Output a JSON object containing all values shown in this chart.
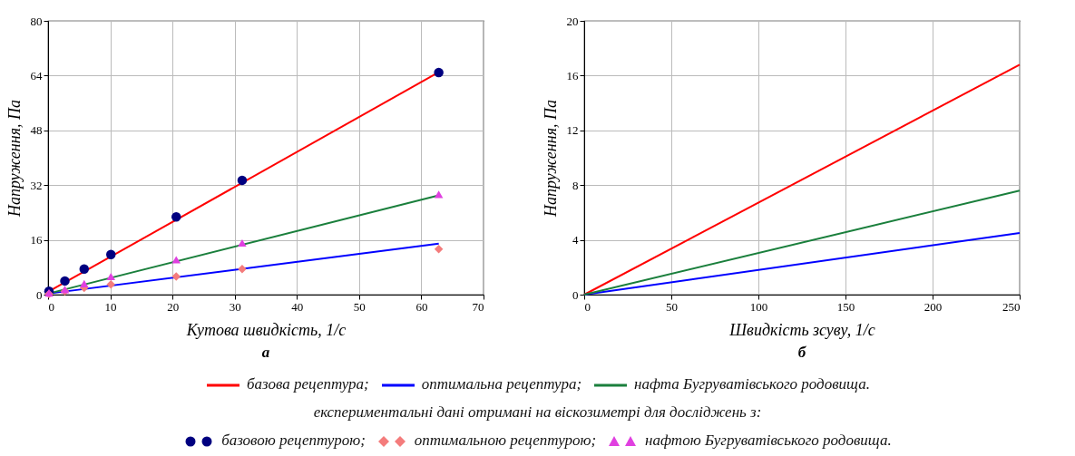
{
  "chart_data": [
    {
      "type": "line",
      "title": "а",
      "xlabel": "Кутова швидкість, 1/с",
      "ylabel": "Напруження, Па",
      "xlim": [
        0,
        70
      ],
      "xticks": [
        0,
        10,
        20,
        30,
        40,
        50,
        60,
        70
      ],
      "ylim": [
        0,
        80
      ],
      "yticks": [
        0,
        16,
        32,
        48,
        64,
        80
      ],
      "grid": true,
      "legend": "bottom",
      "marker": "none",
      "line_style": "solid",
      "annotations": [
        "експериментальні дані отримані на віскозиметрі для досліджень з:"
      ],
      "series": [
        {
          "name": "базова рецептура;",
          "color": "#ff0000",
          "type": "line",
          "x": [
            0,
            62.8
          ],
          "values": [
            0.8,
            65
          ]
        },
        {
          "name": "оптимальна рецептура;",
          "color": "#0000ff",
          "type": "line",
          "x": [
            0,
            62.8
          ],
          "values": [
            0.3,
            14.9
          ]
        },
        {
          "name": "нафта Бугруватівського родовища.",
          "color": "#1a7f3c",
          "type": "line",
          "x": [
            0,
            62.8
          ],
          "values": [
            0.3,
            29.0
          ]
        },
        {
          "name": "базовою рецептурою;",
          "color": "#000080",
          "type": "scatter",
          "marker": "circle",
          "x": [
            0.15,
            2.7,
            5.8,
            10.1,
            20.6,
            31.2,
            62.8
          ],
          "values": [
            1.0,
            4.0,
            7.5,
            11.7,
            22.7,
            33.4,
            64.9
          ]
        },
        {
          "name": "оптимальною рецептурою;",
          "color": "#f47c7c",
          "type": "scatter",
          "marker": "diamond",
          "x": [
            0.15,
            2.7,
            5.8,
            10.1,
            20.6,
            31.2,
            62.8
          ],
          "values": [
            0.2,
            1.0,
            2.0,
            3.0,
            5.3,
            7.5,
            13.3
          ]
        },
        {
          "name": "нафтою Бугруватівського родовища.",
          "color": "#e040e0",
          "type": "scatter",
          "marker": "triangle",
          "x": [
            0.15,
            2.7,
            5.8,
            10.1,
            20.6,
            31.2,
            62.8
          ],
          "values": [
            0.5,
            1.5,
            3.2,
            5.3,
            10.2,
            15.1,
            29.3
          ]
        }
      ]
    },
    {
      "type": "line",
      "title": "б",
      "xlabel": "Швидкість зсуву, 1/с",
      "ylabel": "Напруження, Па",
      "xlim": [
        0,
        250
      ],
      "xticks": [
        0,
        50,
        100,
        150,
        200,
        250
      ],
      "ylim": [
        0,
        20
      ],
      "yticks": [
        0,
        4,
        8,
        12,
        16,
        20
      ],
      "grid": true,
      "marker": "none",
      "line_style": "solid",
      "series": [
        {
          "color": "#ff0000",
          "type": "line",
          "x": [
            0,
            250
          ],
          "values": [
            0,
            16.8
          ]
        },
        {
          "color": "#0000ff",
          "type": "line",
          "x": [
            0,
            250
          ],
          "values": [
            0,
            4.5
          ]
        },
        {
          "color": "#1a7f3c",
          "type": "line",
          "x": [
            0,
            250
          ],
          "values": [
            0,
            7.6
          ]
        }
      ]
    }
  ]
}
